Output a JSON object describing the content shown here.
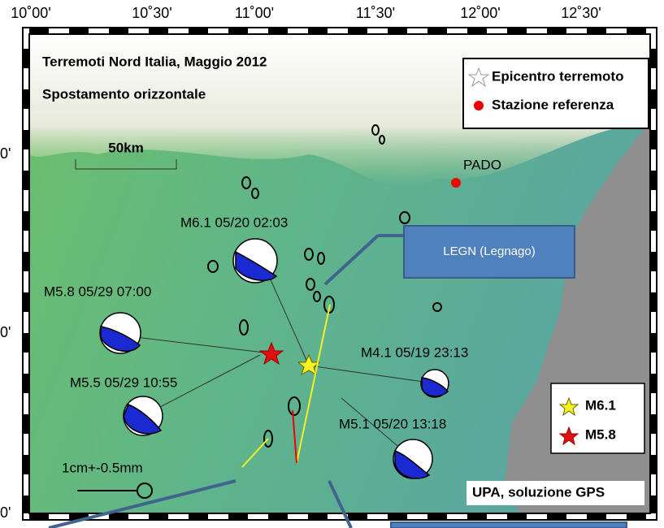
{
  "map": {
    "top_axis_labels": [
      "10˚00'",
      "10˚30'",
      "11˚00'",
      "11˚30'",
      "12˚00'",
      "12˚30'"
    ],
    "left_axis_labels": [
      "0'",
      "0'",
      "0'"
    ],
    "title": "Terremoti Nord Italia, Maggio 2012",
    "subtitle": "Spostamento orizzontale",
    "legend": {
      "epicenter": "Epicentro terremoto",
      "reference_station": "Stazione referenza"
    },
    "scale_bar": "50km",
    "reference_station_name": "PADO",
    "events": [
      "M6.1 05/20 02:03",
      "M5.8 05/29 07:00",
      "M5.5 05/29 10:55",
      "M4.1 05/19 23:13",
      "M5.1 05/20 13:18"
    ],
    "callout": "LEGN  (Legnago)",
    "magnitude_legend": [
      "M6.1",
      "M5.8"
    ],
    "vector_scale": "1cm+-0.5mm",
    "credit": "UPA, soluzione GPS"
  }
}
